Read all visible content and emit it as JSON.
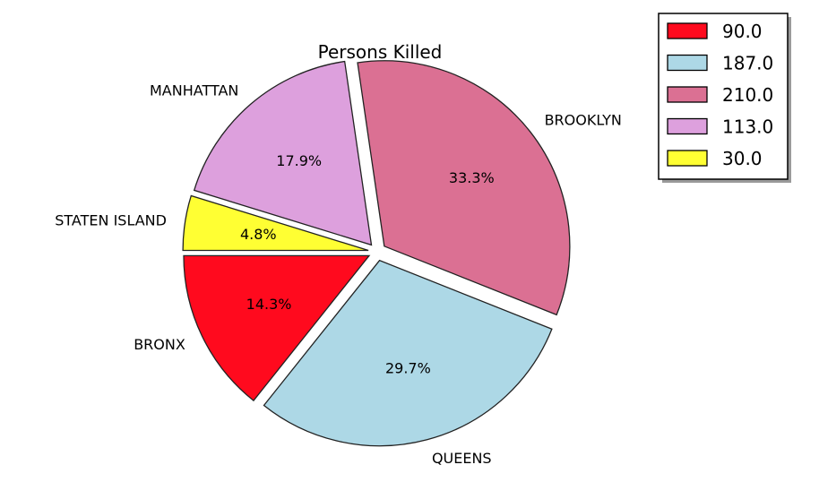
{
  "chart_data": {
    "type": "pie",
    "title": "Persons Killed",
    "start_angle_deg": 180,
    "direction": "counterclockwise",
    "explode": true,
    "slices": [
      {
        "label": "BRONX",
        "value": 90.0,
        "percent_label": "14.3%",
        "color": "#ff0a1e"
      },
      {
        "label": "QUEENS",
        "value": 187.0,
        "percent_label": "29.7%",
        "color": "#add8e6"
      },
      {
        "label": "BROOKLYN",
        "value": 210.0,
        "percent_label": "33.3%",
        "color": "#db7093"
      },
      {
        "label": "MANHATTAN",
        "value": 113.0,
        "percent_label": "17.9%",
        "color": "#dda0dd"
      },
      {
        "label": "STATEN ISLAND",
        "value": 30.0,
        "percent_label": "4.8%",
        "color": "#ffff33"
      }
    ],
    "legend": {
      "placement": "top-right",
      "entries": [
        "90.0",
        "187.0",
        "210.0",
        "113.0",
        "30.0"
      ]
    }
  }
}
